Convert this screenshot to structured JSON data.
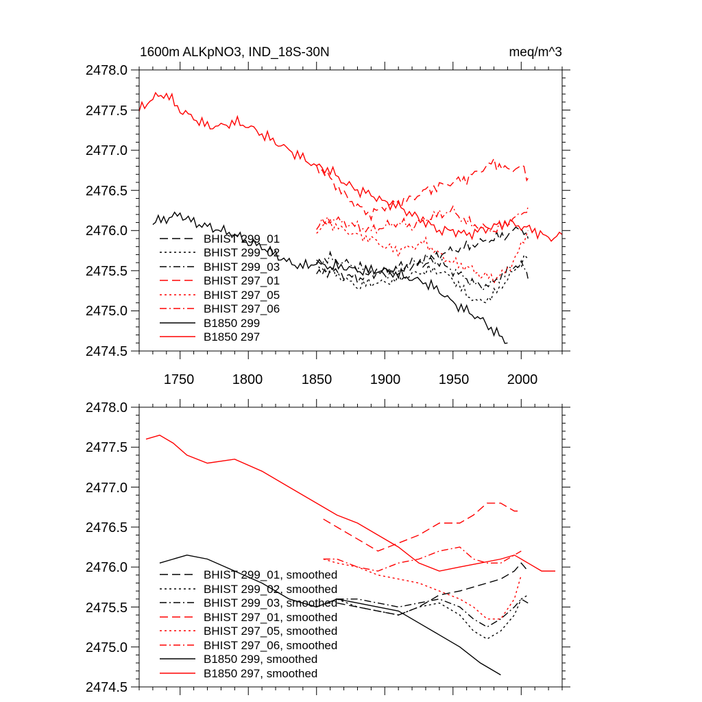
{
  "chart_data": [
    {
      "type": "line",
      "panel": "top",
      "title_left": "1600m ALKpNO3, IND_18S-30N",
      "title_right": "meq/m^3",
      "xlim": [
        1720,
        2030
      ],
      "ylim": [
        2474.5,
        2478.0
      ],
      "xticks": [
        1750,
        1800,
        1850,
        1900,
        1950,
        2000
      ],
      "xtick_labels": [
        "1750",
        "1800",
        "1850",
        "1900",
        "1950",
        "2000"
      ],
      "yticks": [
        2474.5,
        2475.0,
        2475.5,
        2476.0,
        2476.5,
        2477.0,
        2477.5,
        2478.0
      ],
      "ytick_labels": [
        "2474.5",
        "2475.0",
        "2475.5",
        "2476.0",
        "2476.5",
        "2477.0",
        "2477.5",
        "2478.0"
      ],
      "legend_position": "lower-left",
      "series": [
        {
          "name": "BHIST 299_01",
          "color": "#000000",
          "dash": "dash",
          "x": [
            1850,
            1860,
            1870,
            1880,
            1890,
            1900,
            1910,
            1920,
            1930,
            1940,
            1950,
            1960,
            1970,
            1980,
            1990,
            2000,
            2005
          ],
          "y": [
            2475.45,
            2475.5,
            2475.45,
            2475.4,
            2475.45,
            2475.5,
            2475.55,
            2475.55,
            2475.6,
            2475.7,
            2475.75,
            2475.8,
            2475.85,
            2475.9,
            2475.95,
            2476.05,
            2475.9
          ]
        },
        {
          "name": "BHIST 299_02",
          "color": "#000000",
          "dash": "dot",
          "x": [
            1850,
            1860,
            1870,
            1880,
            1890,
            1900,
            1910,
            1920,
            1930,
            1940,
            1950,
            1960,
            1970,
            1980,
            1990,
            2000,
            2005
          ],
          "y": [
            2475.55,
            2475.5,
            2475.4,
            2475.3,
            2475.35,
            2475.35,
            2475.4,
            2475.45,
            2475.5,
            2475.5,
            2475.4,
            2475.2,
            2475.1,
            2475.2,
            2475.4,
            2475.6,
            2475.7
          ]
        },
        {
          "name": "BHIST 299_03",
          "color": "#000000",
          "dash": "dashdot",
          "x": [
            1850,
            1860,
            1870,
            1880,
            1890,
            1900,
            1910,
            1920,
            1930,
            1940,
            1950,
            1960,
            1970,
            1980,
            1990,
            2000,
            2005
          ],
          "y": [
            2475.6,
            2475.65,
            2475.6,
            2475.55,
            2475.5,
            2475.45,
            2475.5,
            2475.6,
            2475.65,
            2475.6,
            2475.5,
            2475.4,
            2475.3,
            2475.35,
            2475.5,
            2475.6,
            2475.4
          ]
        },
        {
          "name": "BHIST 297_01",
          "color": "#ff0000",
          "dash": "dash",
          "x": [
            1850,
            1860,
            1870,
            1880,
            1890,
            1900,
            1910,
            1920,
            1930,
            1940,
            1950,
            1960,
            1970,
            1980,
            1990,
            2000,
            2005
          ],
          "y": [
            2476.8,
            2476.65,
            2476.45,
            2476.3,
            2476.2,
            2476.3,
            2476.35,
            2476.4,
            2476.5,
            2476.55,
            2476.6,
            2476.65,
            2476.75,
            2476.85,
            2476.75,
            2476.8,
            2476.65
          ]
        },
        {
          "name": "BHIST 297_05",
          "color": "#ff0000",
          "dash": "dot",
          "x": [
            1850,
            1860,
            1870,
            1880,
            1890,
            1900,
            1910,
            1920,
            1930,
            1940,
            1950,
            1960,
            1970,
            1980,
            1990,
            2000,
            2005
          ],
          "y": [
            2476.0,
            2476.1,
            2476.0,
            2475.95,
            2475.9,
            2475.8,
            2475.75,
            2475.8,
            2475.85,
            2475.7,
            2475.6,
            2475.55,
            2475.45,
            2475.4,
            2475.5,
            2475.8,
            2476.0
          ]
        },
        {
          "name": "BHIST 297_06",
          "color": "#ff0000",
          "dash": "dashdot",
          "x": [
            1850,
            1860,
            1870,
            1880,
            1890,
            1900,
            1910,
            1920,
            1930,
            1940,
            1950,
            1960,
            1970,
            1980,
            1990,
            2000,
            2005
          ],
          "y": [
            2476.05,
            2476.15,
            2476.1,
            2476.05,
            2476.0,
            2476.05,
            2476.1,
            2476.05,
            2476.15,
            2476.2,
            2476.25,
            2476.1,
            2476.05,
            2476.0,
            2476.1,
            2476.2,
            2476.3
          ]
        },
        {
          "name": "B1850 299",
          "color": "#000000",
          "dash": "solid",
          "x": [
            1730,
            1740,
            1750,
            1760,
            1770,
            1780,
            1790,
            1800,
            1810,
            1820,
            1830,
            1840,
            1850,
            1860,
            1870,
            1880,
            1890,
            1900,
            1910,
            1920,
            1930,
            1940,
            1950,
            1960,
            1970,
            1980,
            1990
          ],
          "y": [
            2476.1,
            2476.15,
            2476.2,
            2476.1,
            2476.05,
            2476.0,
            2475.95,
            2475.85,
            2475.8,
            2475.7,
            2475.6,
            2475.55,
            2475.6,
            2475.55,
            2475.55,
            2475.5,
            2475.5,
            2475.5,
            2475.45,
            2475.4,
            2475.35,
            2475.25,
            2475.1,
            2475.0,
            2474.9,
            2474.75,
            2474.6
          ]
        },
        {
          "name": "B1850 297",
          "color": "#ff0000",
          "dash": "solid",
          "x": [
            1720,
            1730,
            1740,
            1750,
            1760,
            1770,
            1780,
            1790,
            1800,
            1810,
            1820,
            1830,
            1840,
            1850,
            1860,
            1870,
            1880,
            1890,
            1900,
            1910,
            1920,
            1930,
            1940,
            1950,
            1960,
            1970,
            1980,
            1990,
            2000,
            2010,
            2020,
            2030
          ],
          "y": [
            2477.5,
            2477.65,
            2477.7,
            2477.5,
            2477.4,
            2477.3,
            2477.3,
            2477.35,
            2477.3,
            2477.2,
            2477.1,
            2477.0,
            2476.9,
            2476.8,
            2476.75,
            2476.6,
            2476.5,
            2476.45,
            2476.35,
            2476.3,
            2476.2,
            2476.1,
            2476.0,
            2476.0,
            2475.95,
            2476.0,
            2476.05,
            2476.1,
            2476.05,
            2476.0,
            2475.9,
            2475.95
          ]
        }
      ]
    },
    {
      "type": "line",
      "panel": "bottom",
      "xlim": [
        1720,
        2030
      ],
      "ylim": [
        2474.5,
        2478.0
      ],
      "xticks": [
        1750,
        1800,
        1850,
        1900,
        1950,
        2000
      ],
      "yticks": [
        2474.5,
        2475.0,
        2475.5,
        2476.0,
        2476.5,
        2477.0,
        2477.5,
        2478.0
      ],
      "ytick_labels": [
        "2474.5",
        "2475.0",
        "2475.5",
        "2476.0",
        "2476.5",
        "2477.0",
        "2477.5",
        "2478.0"
      ],
      "legend_position": "lower-left",
      "series": [
        {
          "name": "BHIST 299_01, smoothed",
          "color": "#000000",
          "dash": "dash",
          "x": [
            1865,
            1880,
            1895,
            1910,
            1925,
            1940,
            1955,
            1965,
            1975,
            1985,
            1995,
            2000,
            2005
          ],
          "y": [
            2475.55,
            2475.5,
            2475.45,
            2475.4,
            2475.5,
            2475.65,
            2475.7,
            2475.75,
            2475.8,
            2475.85,
            2475.95,
            2476.05,
            2475.95
          ]
        },
        {
          "name": "BHIST 299_02, smoothed",
          "color": "#000000",
          "dash": "dot",
          "x": [
            1865,
            1880,
            1895,
            1910,
            1925,
            1940,
            1955,
            1965,
            1975,
            1985,
            1995,
            2000,
            2005
          ],
          "y": [
            2475.6,
            2475.5,
            2475.45,
            2475.4,
            2475.5,
            2475.55,
            2475.4,
            2475.2,
            2475.1,
            2475.2,
            2475.4,
            2475.6,
            2475.65
          ]
        },
        {
          "name": "BHIST 299_03, smoothed",
          "color": "#000000",
          "dash": "dashdot",
          "x": [
            1865,
            1880,
            1895,
            1910,
            1925,
            1940,
            1955,
            1965,
            1975,
            1985,
            1995,
            2000,
            2005
          ],
          "y": [
            2475.6,
            2475.6,
            2475.55,
            2475.5,
            2475.55,
            2475.6,
            2475.5,
            2475.35,
            2475.25,
            2475.35,
            2475.5,
            2475.6,
            2475.55
          ]
        },
        {
          "name": "BHIST 297_01, smoothed",
          "color": "#ff0000",
          "dash": "dash",
          "x": [
            1855,
            1865,
            1880,
            1895,
            1910,
            1925,
            1940,
            1955,
            1965,
            1975,
            1985,
            1995,
            2000
          ],
          "y": [
            2476.6,
            2476.5,
            2476.35,
            2476.2,
            2476.3,
            2476.4,
            2476.55,
            2476.55,
            2476.65,
            2476.8,
            2476.8,
            2476.7,
            2476.7
          ]
        },
        {
          "name": "BHIST 297_05, smoothed",
          "color": "#ff0000",
          "dash": "dot",
          "x": [
            1855,
            1865,
            1880,
            1895,
            1910,
            1925,
            1940,
            1955,
            1965,
            1975,
            1985,
            1995,
            2000
          ],
          "y": [
            2476.1,
            2476.05,
            2476.0,
            2475.9,
            2475.85,
            2475.8,
            2475.7,
            2475.6,
            2475.5,
            2475.35,
            2475.35,
            2475.6,
            2475.9
          ]
        },
        {
          "name": "BHIST 297_06, smoothed",
          "color": "#ff0000",
          "dash": "dashdot",
          "x": [
            1855,
            1865,
            1880,
            1895,
            1910,
            1925,
            1940,
            1955,
            1965,
            1975,
            1985,
            1995,
            2000
          ],
          "y": [
            2476.1,
            2476.1,
            2476.0,
            2475.95,
            2476.05,
            2476.1,
            2476.2,
            2476.25,
            2476.1,
            2476.05,
            2476.05,
            2476.15,
            2476.2
          ]
        },
        {
          "name": "B1850 299, smoothed",
          "color": "#000000",
          "dash": "solid",
          "x": [
            1735,
            1745,
            1755,
            1770,
            1790,
            1810,
            1830,
            1850,
            1865,
            1880,
            1895,
            1910,
            1925,
            1940,
            1955,
            1970,
            1985
          ],
          "y": [
            2476.05,
            2476.1,
            2476.15,
            2476.1,
            2475.95,
            2475.8,
            2475.6,
            2475.5,
            2475.6,
            2475.55,
            2475.5,
            2475.45,
            2475.3,
            2475.15,
            2475.0,
            2474.8,
            2474.65
          ]
        },
        {
          "name": "B1850 297, smoothed",
          "color": "#ff0000",
          "dash": "solid",
          "x": [
            1725,
            1735,
            1745,
            1755,
            1770,
            1790,
            1810,
            1830,
            1850,
            1865,
            1880,
            1895,
            1910,
            1925,
            1940,
            1955,
            1970,
            1985,
            1995,
            2005,
            2015,
            2025
          ],
          "y": [
            2477.6,
            2477.65,
            2477.55,
            2477.4,
            2477.3,
            2477.35,
            2477.2,
            2477.0,
            2476.8,
            2476.65,
            2476.55,
            2476.4,
            2476.25,
            2476.05,
            2475.95,
            2476.0,
            2476.05,
            2476.1,
            2476.15,
            2476.05,
            2475.95,
            2475.95
          ]
        }
      ]
    }
  ]
}
